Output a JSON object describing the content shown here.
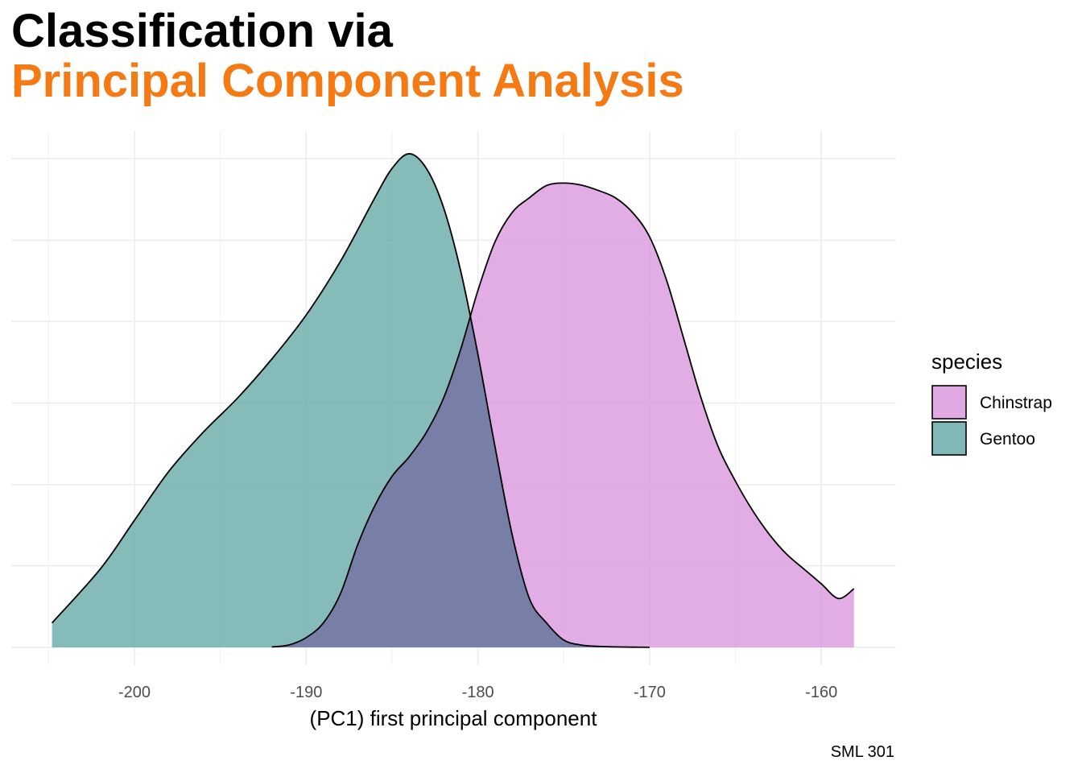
{
  "chart_data": {
    "type": "area",
    "subtype": "density",
    "title": "Classification via",
    "subtitle": "Principal Component Analysis",
    "xlabel": "(PC1) first principal component",
    "ylabel": "",
    "caption": "SML 301",
    "xlim": [
      -205,
      -158
    ],
    "x_ticks": [
      -200,
      -190,
      -180,
      -170,
      -160
    ],
    "x_tick_labels": [
      "-200",
      "-190",
      "-180",
      "-170",
      "-160"
    ],
    "ylim": [
      0,
      1.02
    ],
    "grid": true,
    "y_tick_labels_shown": false,
    "legend": {
      "title": "species",
      "position": "right"
    },
    "series": [
      {
        "name": "Gentoo",
        "color": "#6aacaa",
        "x": [
          -204.8,
          -202,
          -200,
          -198,
          -196,
          -194,
          -192,
          -190,
          -188,
          -186,
          -185,
          -184,
          -183,
          -182,
          -181,
          -180,
          -179,
          -178,
          -177,
          -176,
          -175,
          -174,
          -173,
          -172,
          -171,
          -170
        ],
        "y": [
          0.05,
          0.16,
          0.26,
          0.36,
          0.44,
          0.51,
          0.59,
          0.68,
          0.79,
          0.92,
          0.98,
          1.01,
          0.98,
          0.9,
          0.77,
          0.6,
          0.41,
          0.23,
          0.1,
          0.05,
          0.015,
          0.005,
          0.002,
          0.001,
          0.0005,
          0.0002
        ]
      },
      {
        "name": "Chinstrap",
        "color": "#dc9ade",
        "x": [
          -192,
          -191,
          -190,
          -189,
          -188,
          -187,
          -186,
          -185,
          -184,
          -183,
          -182,
          -181,
          -180,
          -179,
          -178,
          -177,
          -176,
          -175,
          -174,
          -173,
          -172,
          -171,
          -170,
          -169,
          -168,
          -167,
          -166,
          -165,
          -164,
          -163,
          -162,
          -161,
          -160,
          -159,
          -158.1
        ],
        "y": [
          0.001,
          0.005,
          0.02,
          0.05,
          0.11,
          0.21,
          0.29,
          0.35,
          0.39,
          0.44,
          0.51,
          0.61,
          0.73,
          0.83,
          0.89,
          0.92,
          0.945,
          0.95,
          0.946,
          0.935,
          0.92,
          0.89,
          0.84,
          0.75,
          0.63,
          0.51,
          0.41,
          0.34,
          0.28,
          0.23,
          0.19,
          0.16,
          0.13,
          0.1,
          0.12
        ]
      }
    ]
  }
}
